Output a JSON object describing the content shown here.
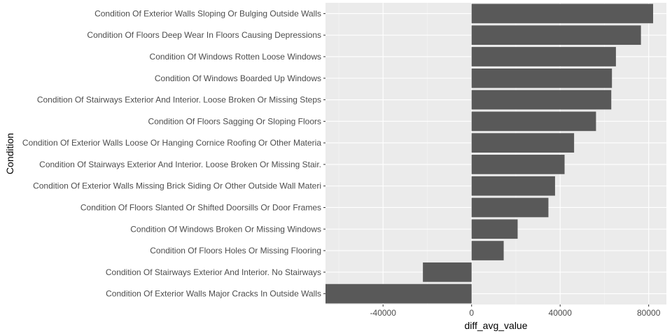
{
  "chart_data": {
    "type": "bar",
    "orientation": "horizontal",
    "title": "",
    "xlabel": "diff_avg_value",
    "ylabel": "Condition",
    "xlim": [
      -66000,
      88000
    ],
    "x_ticks": [
      -40000,
      0,
      40000,
      80000
    ],
    "x_tick_labels": [
      "-40000",
      "0",
      "40000",
      "80000"
    ],
    "grid": true,
    "legend": "none",
    "categories": [
      "Condition Of Exterior Walls Sloping Or Bulging Outside Walls",
      "Condition Of Floors Deep Wear In Floors Causing Depressions",
      "Condition Of Windows Rotten Loose Windows",
      "Condition Of Windows Boarded Up Windows",
      "Condition Of Stairways Exterior And Interior. Loose Broken Or Missing Steps",
      "Condition Of Floors Sagging Or Sloping Floors",
      "Condition Of Exterior Walls Loose Or Hanging Cornice Roofing Or Other Materia",
      "Condition Of Stairways Exterior And Interior. Loose Broken Or Missing Stair.",
      "Condition Of Exterior Walls Missing Brick Siding Or Other Outside Wall Materi",
      "Condition Of Floors Slanted Or Shifted Doorsills Or Door Frames",
      "Condition Of Windows Broken Or Missing Windows",
      "Condition Of Floors Holes Or Missing Flooring",
      "Condition Of Stairways Exterior And Interior. No Stairways",
      "Condition Of Exterior Walls Major Cracks In Outside Walls"
    ],
    "values": [
      82000,
      76500,
      65200,
      63400,
      63100,
      56200,
      46300,
      42000,
      37700,
      34700,
      20800,
      14500,
      -22000,
      -66000
    ]
  },
  "colors": {
    "panel_background": "#ebebeb",
    "grid_major": "#ffffff",
    "grid_minor": "#f5f5f5",
    "bar_fill": "#595959",
    "tick_text": "#4d4d4d",
    "title_text": "#000000"
  }
}
